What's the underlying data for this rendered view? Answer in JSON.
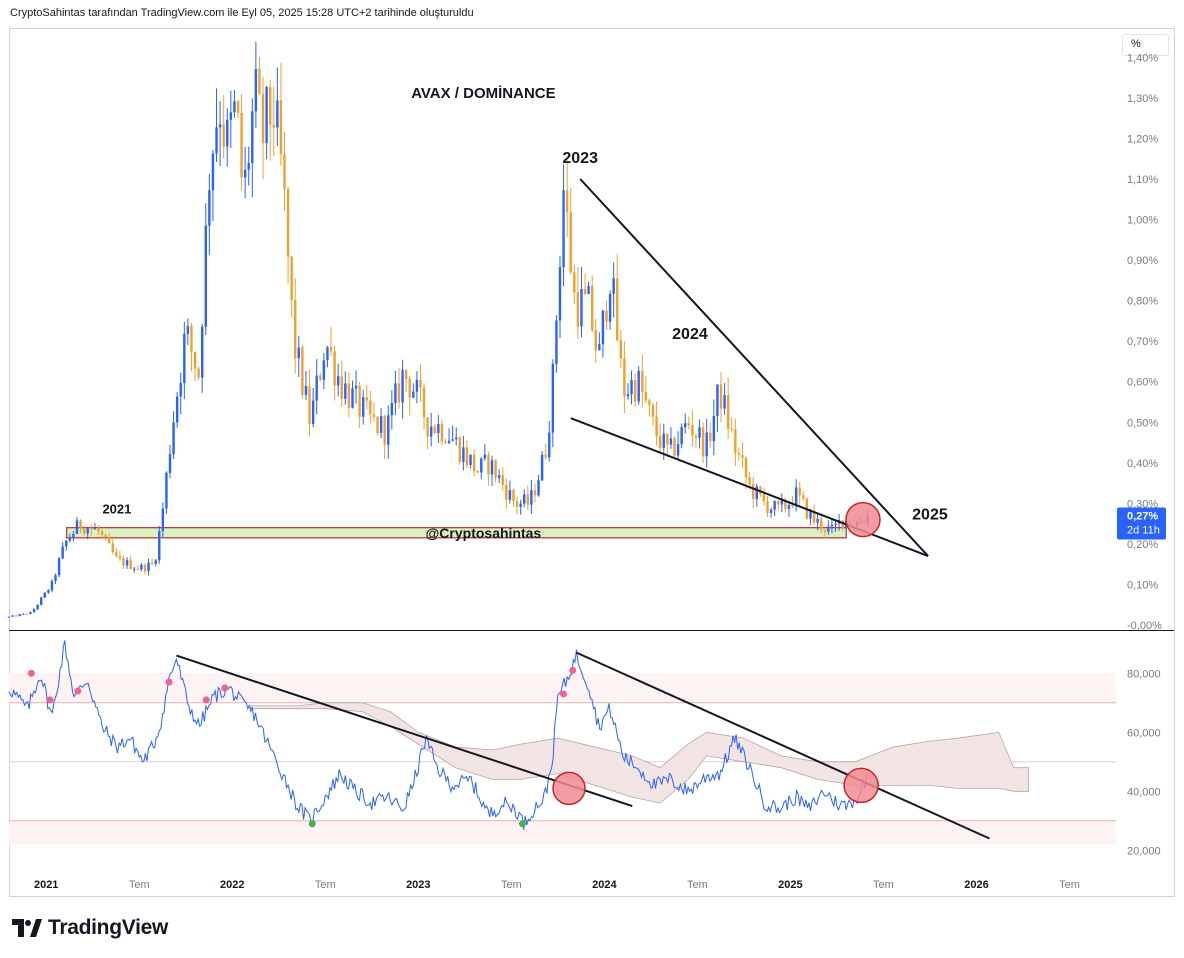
{
  "header": {
    "text": "CryptoSahintas tarafından TradingView.com ile Eyl 05, 2025 15:28 UTC+2 tarihinde oluşturuldu"
  },
  "scale_mode_label": "%",
  "brand": {
    "logo_text": "TradingView"
  },
  "colors": {
    "up": "#2962ff",
    "down": "#f0a12b",
    "rsi_line": "#2962ff",
    "support_band": "#d9f2c2",
    "support_border": "#c62828",
    "marker_fill": "#f28b93",
    "marker_stroke": "#c62828"
  },
  "chart_data": [
    {
      "type": "candlestick",
      "title": "AVAX / DOMİNANCE",
      "y_axis": {
        "ticks": [
          "1,40%",
          "1,30%",
          "1,20%",
          "1,10%",
          "1,00%",
          "0,90%",
          "0,80%",
          "0,70%",
          "0,60%",
          "0,50%",
          "0,40%",
          "0,30%",
          "0,20%",
          "0,10%",
          "-0,00%"
        ],
        "tick_values": [
          1.4,
          1.3,
          1.2,
          1.1,
          1.0,
          0.9,
          0.8,
          0.7,
          0.6,
          0.5,
          0.4,
          0.3,
          0.2,
          0.1,
          0.0
        ],
        "range": [
          -0.005,
          1.47
        ]
      },
      "x_axis": {
        "ticks": [
          "2021",
          "Tem",
          "2022",
          "Tem",
          "2023",
          "Tem",
          "2024",
          "Tem",
          "2025",
          "Tem",
          "2026",
          "Tem"
        ],
        "tick_values": [
          2021.0,
          2021.5,
          2022.0,
          2022.5,
          2023.0,
          2023.5,
          2024.0,
          2024.5,
          2025.0,
          2025.5,
          2026.0,
          2026.5
        ],
        "range": [
          2020.8,
          2026.75
        ]
      },
      "key_points": [
        [
          2020.8,
          0.02
        ],
        [
          2020.92,
          0.03
        ],
        [
          2021.03,
          0.1
        ],
        [
          2021.1,
          0.2
        ],
        [
          2021.18,
          0.25
        ],
        [
          2021.28,
          0.23
        ],
        [
          2021.38,
          0.16
        ],
        [
          2021.5,
          0.14
        ],
        [
          2021.58,
          0.15
        ],
        [
          2021.62,
          0.26
        ],
        [
          2021.68,
          0.5
        ],
        [
          2021.75,
          0.72
        ],
        [
          2021.82,
          0.62
        ],
        [
          2021.88,
          1.15
        ],
        [
          2021.93,
          1.3
        ],
        [
          2021.97,
          1.18
        ],
        [
          2022.02,
          1.27
        ],
        [
          2022.06,
          1.05
        ],
        [
          2022.12,
          1.3
        ],
        [
          2022.16,
          1.2
        ],
        [
          2022.22,
          1.28
        ],
        [
          2022.27,
          1.1
        ],
        [
          2022.33,
          0.7
        ],
        [
          2022.42,
          0.5
        ],
        [
          2022.5,
          0.7
        ],
        [
          2022.58,
          0.6
        ],
        [
          2022.66,
          0.55
        ],
        [
          2022.75,
          0.5
        ],
        [
          2022.83,
          0.48
        ],
        [
          2022.92,
          0.62
        ],
        [
          2022.98,
          0.58
        ],
        [
          2023.05,
          0.5
        ],
        [
          2023.15,
          0.48
        ],
        [
          2023.25,
          0.42
        ],
        [
          2023.32,
          0.38
        ],
        [
          2023.38,
          0.4
        ],
        [
          2023.45,
          0.35
        ],
        [
          2023.52,
          0.3
        ],
        [
          2023.6,
          0.3
        ],
        [
          2023.68,
          0.42
        ],
        [
          2023.72,
          0.58
        ],
        [
          2023.78,
          1.08
        ],
        [
          2023.84,
          0.8
        ],
        [
          2023.92,
          0.78
        ],
        [
          2023.97,
          0.65
        ],
        [
          2024.03,
          0.88
        ],
        [
          2024.1,
          0.58
        ],
        [
          2024.18,
          0.6
        ],
        [
          2024.27,
          0.48
        ],
        [
          2024.35,
          0.42
        ],
        [
          2024.45,
          0.5
        ],
        [
          2024.55,
          0.44
        ],
        [
          2024.62,
          0.58
        ],
        [
          2024.7,
          0.44
        ],
        [
          2024.78,
          0.34
        ],
        [
          2024.86,
          0.3
        ],
        [
          2024.94,
          0.28
        ],
        [
          2025.03,
          0.32
        ],
        [
          2025.12,
          0.26
        ],
        [
          2025.22,
          0.23
        ],
        [
          2025.28,
          0.26
        ],
        [
          2025.35,
          0.25
        ],
        [
          2025.42,
          0.27
        ]
      ],
      "last_value_label": {
        "value": "0,27%",
        "countdown": "2d 11h",
        "value_num": 0.27
      },
      "annotations": [
        {
          "text": "2021",
          "x": 2021.38,
          "y": 0.275
        },
        {
          "text": "2023",
          "x": 2023.87,
          "y": 1.14
        },
        {
          "text": "2024",
          "x": 2024.46,
          "y": 0.705
        },
        {
          "text": "2025",
          "x": 2025.75,
          "y": 0.26
        },
        {
          "text": "@Cryptosahintas",
          "x": 2023.35,
          "y": 0.215
        }
      ],
      "trendlines": [
        {
          "from": [
            2023.87,
            1.1
          ],
          "to": [
            2025.74,
            0.17
          ]
        },
        {
          "from": [
            2023.82,
            0.51
          ],
          "to": [
            2025.74,
            0.17
          ]
        }
      ],
      "support_zone": {
        "from_x": 2021.11,
        "to_x": 2025.3,
        "y_low": 0.215,
        "y_high": 0.24
      },
      "markers": [
        {
          "x": 2025.39,
          "y": 0.26
        }
      ]
    },
    {
      "type": "line",
      "title": "",
      "y_axis": {
        "ticks": [
          "80,000",
          "60,000",
          "40,000",
          "20,000"
        ],
        "tick_values": [
          80,
          60,
          40,
          20
        ],
        "range": [
          14,
          94
        ],
        "band_lines": [
          70,
          50,
          30
        ]
      },
      "x_axis": {
        "range": [
          2020.8,
          2026.75
        ]
      },
      "key_points": [
        [
          2020.8,
          75
        ],
        [
          2020.9,
          68
        ],
        [
          2020.97,
          80
        ],
        [
          2021.03,
          65
        ],
        [
          2021.1,
          90
        ],
        [
          2021.15,
          72
        ],
        [
          2021.22,
          78
        ],
        [
          2021.3,
          62
        ],
        [
          2021.38,
          55
        ],
        [
          2021.45,
          58
        ],
        [
          2021.52,
          50
        ],
        [
          2021.58,
          56
        ],
        [
          2021.62,
          64
        ],
        [
          2021.66,
          78
        ],
        [
          2021.7,
          85
        ],
        [
          2021.76,
          70
        ],
        [
          2021.82,
          62
        ],
        [
          2021.9,
          72
        ],
        [
          2021.98,
          75
        ],
        [
          2022.05,
          70
        ],
        [
          2022.12,
          66
        ],
        [
          2022.2,
          55
        ],
        [
          2022.3,
          42
        ],
        [
          2022.35,
          35
        ],
        [
          2022.42,
          30
        ],
        [
          2022.5,
          38
        ],
        [
          2022.58,
          46
        ],
        [
          2022.66,
          40
        ],
        [
          2022.75,
          36
        ],
        [
          2022.83,
          38
        ],
        [
          2022.92,
          34
        ],
        [
          2022.98,
          44
        ],
        [
          2023.04,
          58
        ],
        [
          2023.1,
          48
        ],
        [
          2023.18,
          42
        ],
        [
          2023.28,
          44
        ],
        [
          2023.38,
          32
        ],
        [
          2023.46,
          36
        ],
        [
          2023.52,
          34
        ],
        [
          2023.57,
          29
        ],
        [
          2023.62,
          34
        ],
        [
          2023.68,
          38
        ],
        [
          2023.72,
          50
        ],
        [
          2023.75,
          72
        ],
        [
          2023.8,
          78
        ],
        [
          2023.85,
          86
        ],
        [
          2023.92,
          75
        ],
        [
          2023.97,
          62
        ],
        [
          2024.03,
          68
        ],
        [
          2024.1,
          52
        ],
        [
          2024.18,
          48
        ],
        [
          2024.27,
          42
        ],
        [
          2024.35,
          44
        ],
        [
          2024.45,
          40
        ],
        [
          2024.55,
          45
        ],
        [
          2024.62,
          46
        ],
        [
          2024.7,
          58
        ],
        [
          2024.78,
          48
        ],
        [
          2024.86,
          36
        ],
        [
          2024.94,
          34
        ],
        [
          2025.03,
          38
        ],
        [
          2025.1,
          34
        ],
        [
          2025.18,
          40
        ],
        [
          2025.25,
          36
        ],
        [
          2025.3,
          35
        ],
        [
          2025.36,
          38
        ],
        [
          2025.42,
          46
        ]
      ],
      "cloud": [
        [
          2022.1,
          69,
          68
        ],
        [
          2022.35,
          69,
          68
        ],
        [
          2022.5,
          70,
          68
        ],
        [
          2022.7,
          70,
          67
        ],
        [
          2022.85,
          67,
          62
        ],
        [
          2023.0,
          60,
          56
        ],
        [
          2023.2,
          55,
          48
        ],
        [
          2023.4,
          54,
          44
        ],
        [
          2023.55,
          56,
          44
        ],
        [
          2023.75,
          58,
          46
        ],
        [
          2023.95,
          55,
          42
        ],
        [
          2024.15,
          52,
          38
        ],
        [
          2024.3,
          48,
          36
        ],
        [
          2024.45,
          56,
          44
        ],
        [
          2024.55,
          60,
          52
        ],
        [
          2024.75,
          58,
          50
        ],
        [
          2024.95,
          52,
          48
        ],
        [
          2025.15,
          50,
          44
        ],
        [
          2025.35,
          50,
          42
        ],
        [
          2025.55,
          55,
          42
        ],
        [
          2025.75,
          57,
          42
        ],
        [
          2025.9,
          58,
          41
        ],
        [
          2026.12,
          60,
          41
        ],
        [
          2026.2,
          48,
          40
        ],
        [
          2026.28,
          48,
          40
        ]
      ],
      "trendlines": [
        {
          "from": [
            2021.7,
            86
          ],
          "to": [
            2024.15,
            35
          ]
        },
        {
          "from": [
            2023.85,
            87
          ],
          "to": [
            2026.07,
            24
          ]
        }
      ],
      "markers": [
        {
          "x": 2023.81,
          "y": 41,
          "r": 16
        },
        {
          "x": 2025.38,
          "y": 42,
          "r": 17
        }
      ],
      "overbought_dots": [
        [
          2020.92,
          80
        ],
        [
          2021.02,
          71
        ],
        [
          2021.17,
          74
        ],
        [
          2021.66,
          77
        ],
        [
          2021.86,
          71
        ],
        [
          2021.96,
          75
        ],
        [
          2023.78,
          73
        ],
        [
          2023.83,
          81
        ]
      ],
      "oversold_dots": [
        [
          2022.43,
          29
        ],
        [
          2023.56,
          29
        ]
      ]
    }
  ]
}
